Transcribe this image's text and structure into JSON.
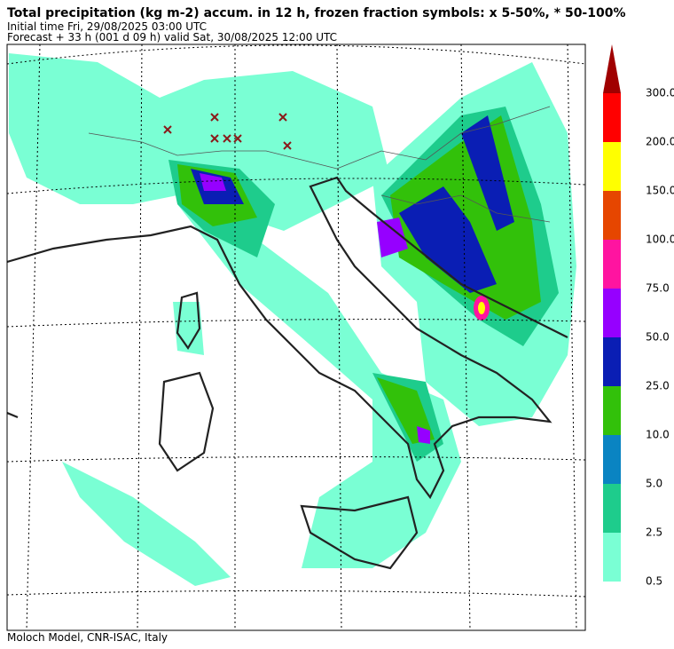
{
  "header": {
    "title": "Total precipitation (kg m-2) accum. in 12 h, frozen fraction symbols: x 5-50%, * 50-100%",
    "initial_time": "Initial time  Fri, 29/08/2025  03:00 UTC",
    "forecast": "Forecast  +  33 h  (001 d 09 h)  valid Sat, 30/08/2025 12:00 UTC"
  },
  "legend": {
    "levels": [
      "0.5",
      "2.5",
      "5.0",
      "10.0",
      "25.0",
      "50.0",
      "75.0",
      "100.0",
      "150.0",
      "200.0",
      "300.0"
    ],
    "colors": [
      "#7affd4",
      "#1ecc8c",
      "#0a84c2",
      "#32c10a",
      "#0a1eb4",
      "#9600ff",
      "#ff14a0",
      "#e64600",
      "#ffff00",
      "#ff0000"
    ],
    "extend_color": "#a00000"
  },
  "footer": "Moloch Model, CNR-ISAC, Italy"
}
